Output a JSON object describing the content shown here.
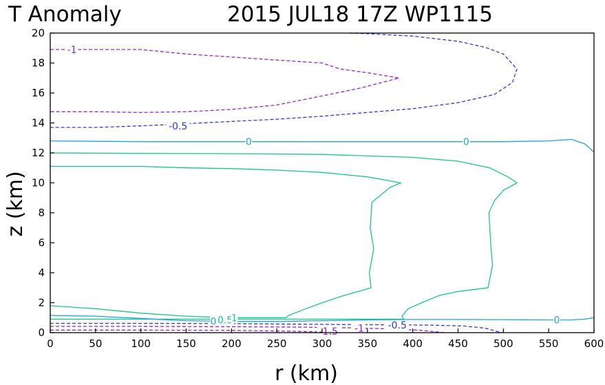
{
  "title": {
    "left": "T Anomaly",
    "right": "2015 JUL18 17Z   WP1115"
  },
  "chart_data": {
    "type": "contour",
    "title": "T Anomaly 2015 JUL18 17Z WP1115",
    "xlabel": "r (km)",
    "ylabel": "z (km)",
    "xlim": [
      0,
      600
    ],
    "ylim": [
      0,
      20
    ],
    "x_ticks": [
      0,
      50,
      100,
      150,
      200,
      250,
      300,
      350,
      400,
      450,
      500,
      550,
      600
    ],
    "y_ticks": [
      0,
      2,
      4,
      6,
      8,
      10,
      12,
      14,
      16,
      18,
      20
    ],
    "colors": {
      "neg1": "#9b1fcf",
      "neg05": "#2b3bd6",
      "zero": "#1aa6df",
      "pos05": "#14c98c",
      "axis": "#000000"
    },
    "contours": [
      {
        "level": "-1",
        "color": "#9b1fcf",
        "style": "dashed",
        "points": [
          [
            0,
            18.9
          ],
          [
            20,
            18.9
          ],
          [
            100,
            18.9
          ],
          [
            150,
            18.6
          ],
          [
            200,
            18.4
          ],
          [
            250,
            18.2
          ],
          [
            300,
            18.0
          ],
          [
            320,
            17.6
          ],
          [
            350,
            17.35
          ],
          [
            385,
            17.0
          ],
          [
            340,
            16.3
          ],
          [
            300,
            15.8
          ],
          [
            250,
            15.2
          ],
          [
            200,
            14.9
          ],
          [
            150,
            14.75
          ],
          [
            100,
            14.7
          ],
          [
            50,
            14.75
          ],
          [
            0,
            14.75
          ]
        ]
      },
      {
        "level": "-0.5",
        "color": "#2b3bd6",
        "style": "dashed",
        "points": [
          [
            330,
            20
          ],
          [
            350,
            19.96
          ],
          [
            400,
            19.8
          ],
          [
            450,
            19.45
          ],
          [
            480,
            19.05
          ],
          [
            500,
            18.6
          ],
          [
            515,
            17.6
          ],
          [
            510,
            16.7
          ],
          [
            490,
            15.9
          ],
          [
            450,
            15.35
          ],
          [
            400,
            14.95
          ],
          [
            350,
            14.7
          ],
          [
            300,
            14.45
          ],
          [
            250,
            14.25
          ],
          [
            200,
            14.1
          ],
          [
            150,
            13.95
          ],
          [
            100,
            13.8
          ],
          [
            50,
            13.7
          ],
          [
            0,
            13.7
          ]
        ]
      },
      {
        "level": "0",
        "color": "#1aa6df",
        "style": "solid",
        "points": [
          [
            0,
            12.8
          ],
          [
            100,
            12.75
          ],
          [
            200,
            12.75
          ],
          [
            300,
            12.75
          ],
          [
            400,
            12.75
          ],
          [
            500,
            12.75
          ],
          [
            550,
            12.8
          ],
          [
            575,
            12.9
          ],
          [
            590,
            12.6
          ],
          [
            600,
            12.05
          ]
        ]
      },
      {
        "level": "0.5",
        "color": "#14c98c",
        "style": "solid",
        "points": [
          [
            0,
            12.0
          ],
          [
            100,
            11.97
          ],
          [
            200,
            11.95
          ],
          [
            300,
            11.9
          ],
          [
            400,
            11.7
          ],
          [
            450,
            11.45
          ],
          [
            485,
            11.0
          ],
          [
            505,
            10.4
          ],
          [
            515,
            10.0
          ],
          [
            500,
            9.5
          ],
          [
            490,
            8.8
          ],
          [
            484,
            8.0
          ],
          [
            486,
            6.0
          ],
          [
            488,
            4.5
          ],
          [
            483,
            3.0
          ],
          [
            450,
            2.75
          ],
          [
            430,
            2.5
          ],
          [
            410,
            2.0
          ],
          [
            395,
            1.6
          ],
          [
            388,
            1.1
          ],
          [
            390,
            0.9
          ],
          [
            300,
            0.9
          ],
          [
            200,
            0.9
          ],
          [
            100,
            0.9
          ],
          [
            0,
            0.9
          ]
        ]
      },
      {
        "level": "1",
        "color": "#14c98c",
        "style": "solid",
        "points": [
          [
            0,
            11.1
          ],
          [
            100,
            11.1
          ],
          [
            150,
            11.0
          ],
          [
            200,
            10.95
          ],
          [
            250,
            10.85
          ],
          [
            300,
            10.7
          ],
          [
            350,
            10.4
          ],
          [
            387,
            10.0
          ],
          [
            375,
            9.7
          ],
          [
            355,
            8.7
          ],
          [
            353,
            7.0
          ],
          [
            357,
            5.6
          ],
          [
            352,
            4.0
          ],
          [
            354,
            3.0
          ],
          [
            340,
            2.75
          ],
          [
            325,
            2.5
          ],
          [
            300,
            2.0
          ],
          [
            280,
            1.55
          ],
          [
            263,
            1.15
          ],
          [
            260,
            1.0
          ],
          [
            200,
            1.0
          ],
          [
            150,
            1.1
          ],
          [
            100,
            1.3
          ],
          [
            50,
            1.6
          ],
          [
            0,
            1.8
          ]
        ]
      },
      {
        "level": "0",
        "color": "#1aa6df",
        "style": "solid",
        "points": [
          [
            0,
            1.15
          ],
          [
            50,
            1.1
          ],
          [
            100,
            0.95
          ],
          [
            130,
            0.85
          ],
          [
            150,
            0.8
          ],
          [
            200,
            0.75
          ],
          [
            250,
            0.75
          ],
          [
            300,
            0.8
          ],
          [
            350,
            0.85
          ],
          [
            400,
            0.88
          ],
          [
            450,
            0.88
          ],
          [
            500,
            0.87
          ],
          [
            550,
            0.85
          ],
          [
            575,
            0.85
          ],
          [
            590,
            0.9
          ],
          [
            600,
            1.0
          ]
        ]
      },
      {
        "level": "-0.5",
        "color": "#2b3bd6",
        "style": "dashed",
        "points": [
          [
            0,
            0.62
          ],
          [
            100,
            0.62
          ],
          [
            200,
            0.6
          ],
          [
            300,
            0.55
          ],
          [
            380,
            0.52
          ],
          [
            420,
            0.5
          ],
          [
            455,
            0.45
          ],
          [
            480,
            0.3
          ],
          [
            498,
            0.0
          ]
        ]
      },
      {
        "level": "-1",
        "color": "#9b1fcf",
        "style": "dashed",
        "points": [
          [
            0,
            0.42
          ],
          [
            100,
            0.42
          ],
          [
            200,
            0.4
          ],
          [
            280,
            0.37
          ],
          [
            330,
            0.32
          ],
          [
            380,
            0.25
          ],
          [
            410,
            0.15
          ],
          [
            435,
            0.0
          ]
        ]
      },
      {
        "level": "-1.5",
        "color": "#9b1fcf",
        "style": "dashed",
        "points": [
          [
            0,
            0.17
          ],
          [
            100,
            0.17
          ],
          [
            200,
            0.15
          ],
          [
            260,
            0.1
          ],
          [
            300,
            0.05
          ],
          [
            318,
            0.0
          ]
        ]
      }
    ],
    "labels": [
      {
        "text": "-1",
        "x": 24,
        "y": 18.9,
        "color": "#9b1fcf"
      },
      {
        "text": "-0.5",
        "x": 141,
        "y": 13.8,
        "color": "#2b3bd6"
      },
      {
        "text": "0",
        "x": 219,
        "y": 12.75,
        "color": "#1aa6df"
      },
      {
        "text": "0",
        "x": 459,
        "y": 12.75,
        "color": "#1aa6df"
      },
      {
        "text": "0",
        "x": 559,
        "y": 0.85,
        "color": "#1aa6df"
      },
      {
        "text": "0",
        "x": 180,
        "y": 0.77,
        "color": "#1aa6df"
      },
      {
        "text": "0.5",
        "x": 193,
        "y": 0.85,
        "color": "#14c98c"
      },
      {
        "text": "1",
        "x": 203,
        "y": 1.0,
        "color": "#14c98c"
      },
      {
        "text": "-0.5",
        "x": 383,
        "y": 0.5,
        "color": "#2b3bd6"
      },
      {
        "text": "-1",
        "x": 341,
        "y": 0.3,
        "color": "#9b1fcf"
      },
      {
        "text": "-1.5",
        "x": 307,
        "y": 0.1,
        "color": "#9b1fcf"
      }
    ]
  }
}
